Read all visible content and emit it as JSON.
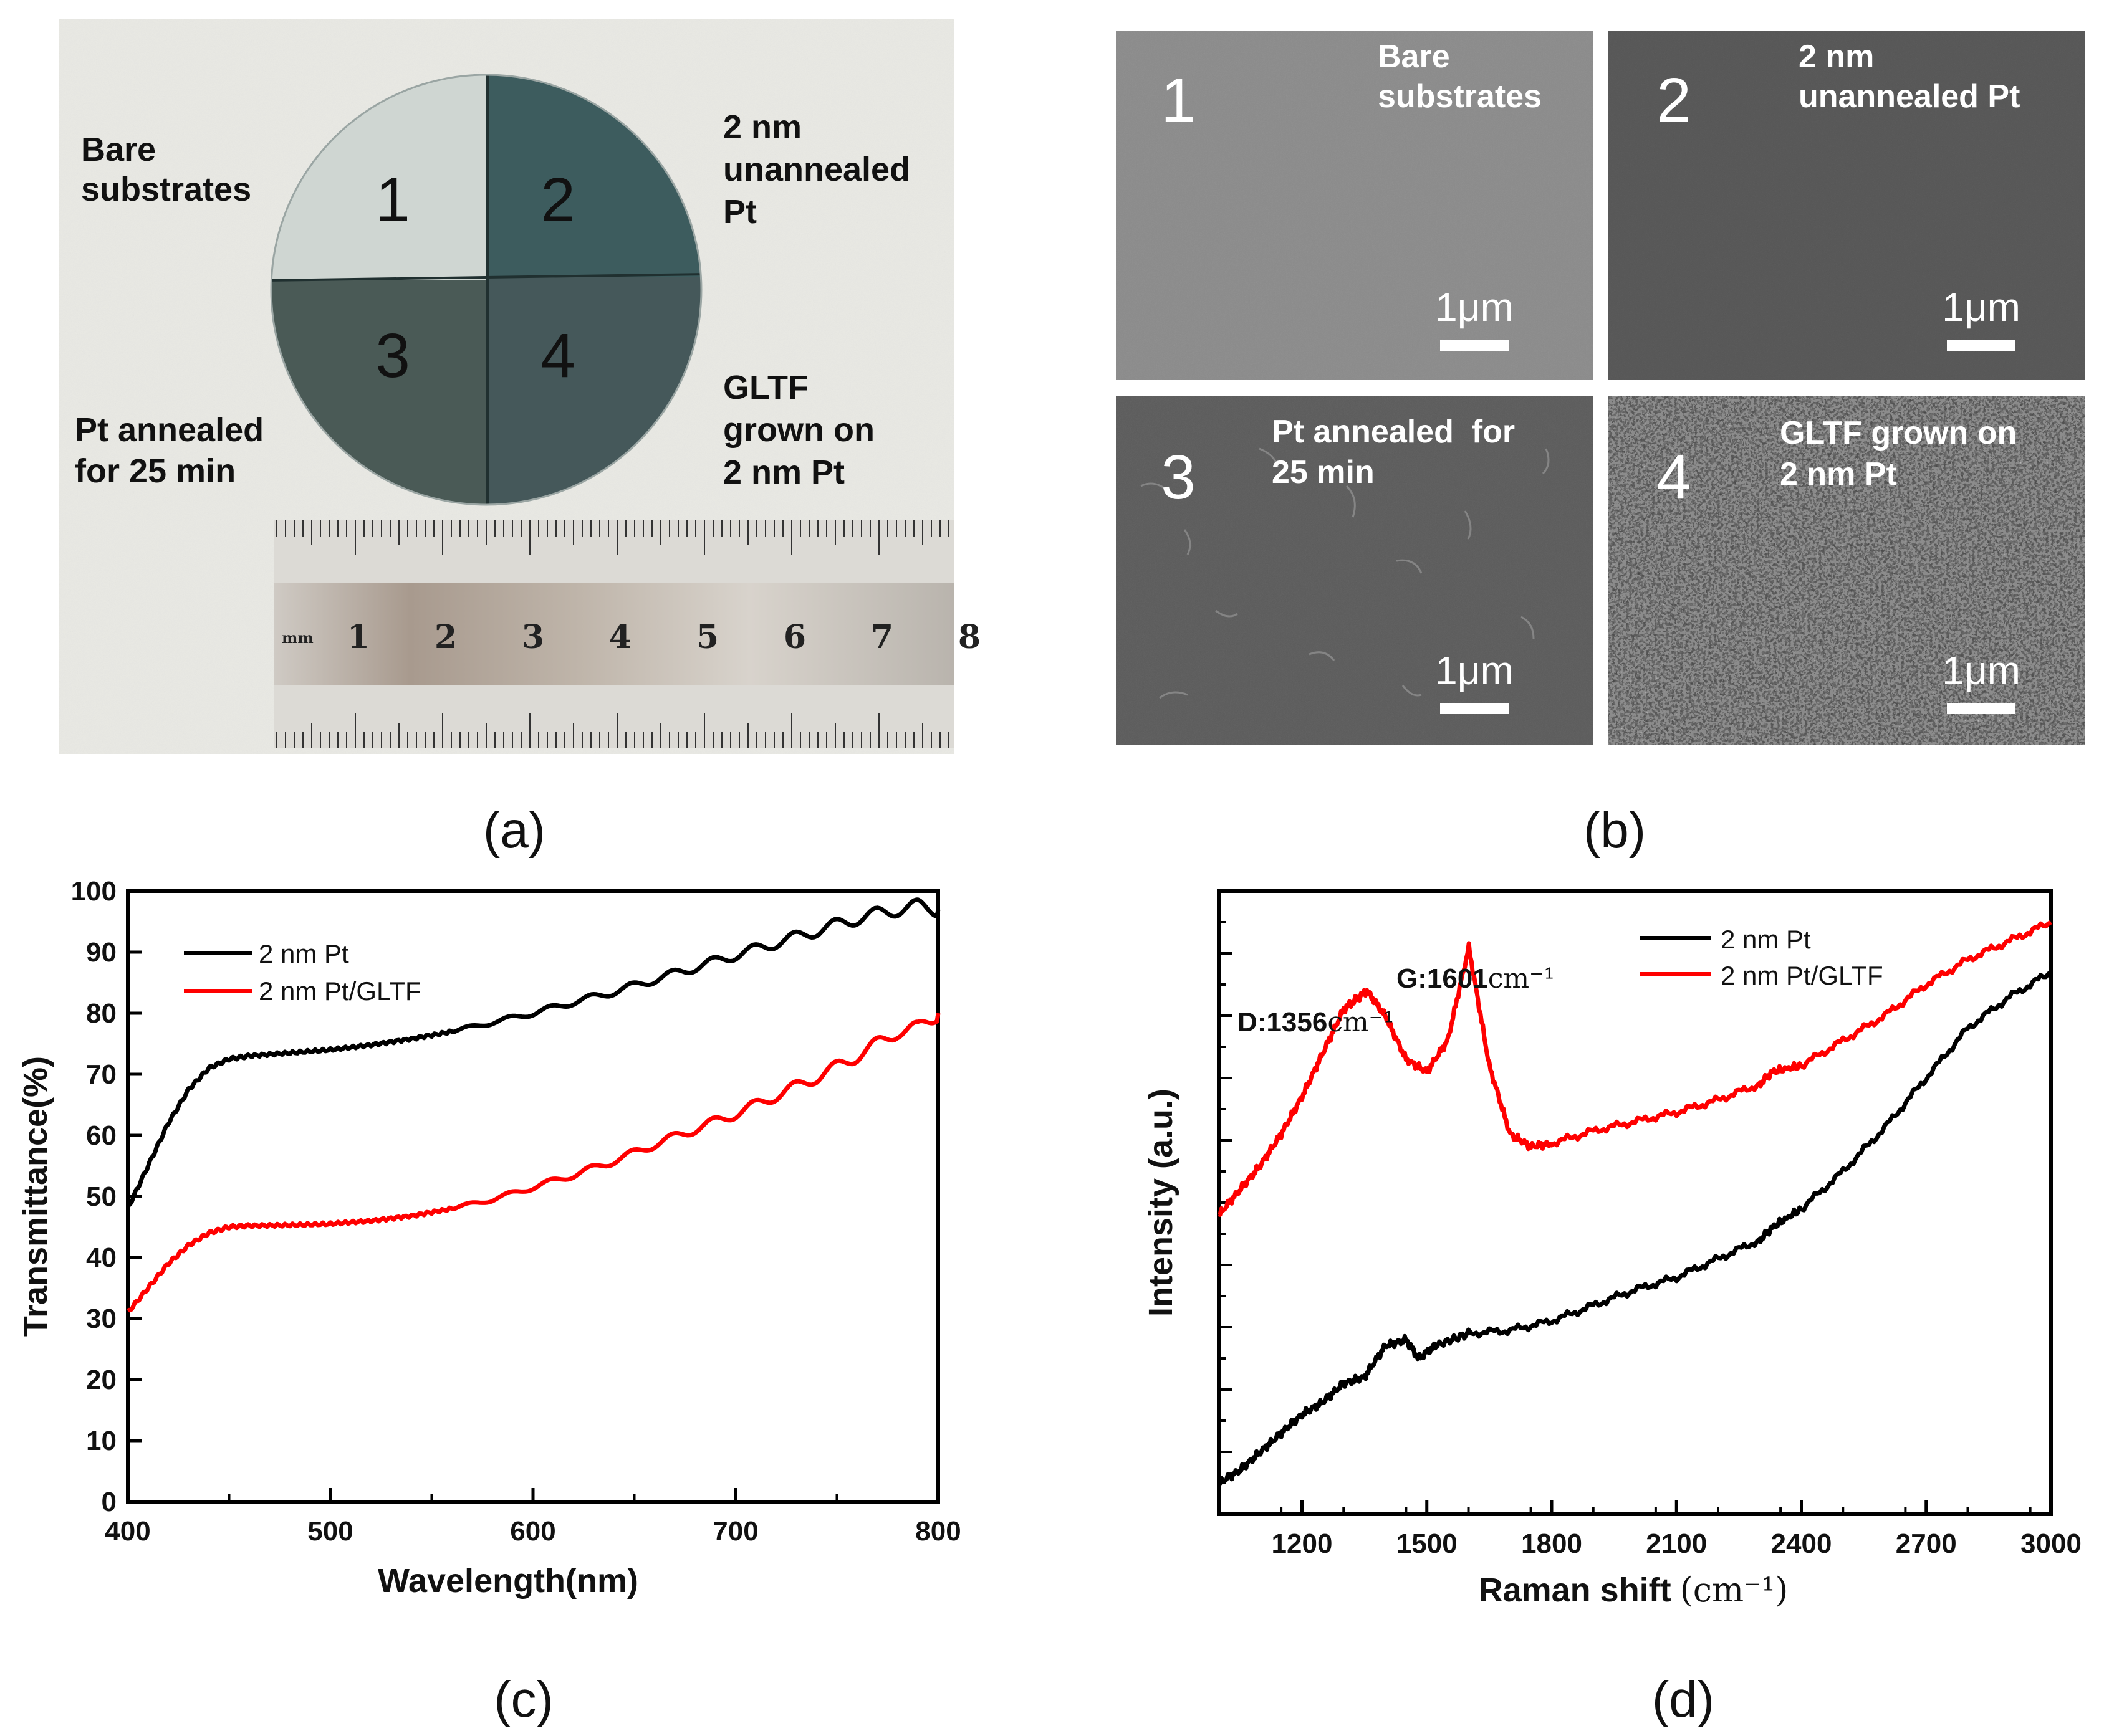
{
  "panel_labels": {
    "a": "(a)",
    "b": "(b)",
    "c": "(c)",
    "d": "(d)"
  },
  "panel_a": {
    "quadrant_numbers": [
      "1",
      "2",
      "3",
      "4"
    ],
    "labels": {
      "bare": [
        "Bare",
        "substrates"
      ],
      "unannealed": [
        "2 nm",
        "unannealed",
        "Pt"
      ],
      "annealed": [
        "Pt annealed",
        "for 25 min"
      ],
      "gltf": [
        "GLTF",
        "grown on",
        "2 nm Pt"
      ]
    },
    "ruler": {
      "unit": "mm",
      "numbers": [
        "1",
        "2",
        "3",
        "4",
        "5",
        "6",
        "7",
        "8"
      ]
    }
  },
  "panel_b": {
    "tiles": [
      {
        "number": "1",
        "caption": [
          "Bare",
          "substrates"
        ],
        "scale": "1μm"
      },
      {
        "number": "2",
        "caption": [
          "2 nm",
          "unannealed Pt"
        ],
        "scale": "1μm"
      },
      {
        "number": "3",
        "caption": [
          "Pt annealed  for",
          "25 min"
        ],
        "scale": "1μm"
      },
      {
        "number": "4",
        "caption": [
          "GLTF grown on",
          "2 nm Pt"
        ],
        "scale": "1μm"
      }
    ]
  },
  "chart_data": [
    {
      "id": "c",
      "type": "line",
      "xlabel": "Wavelength(nm)",
      "ylabel": "Transmittance(%)",
      "xlim": [
        400,
        800
      ],
      "ylim": [
        0,
        100
      ],
      "xticks": [
        400,
        500,
        600,
        700,
        800
      ],
      "yticks": [
        0,
        10,
        20,
        30,
        40,
        50,
        60,
        70,
        80,
        90,
        100
      ],
      "legend_position": "top-left",
      "series": [
        {
          "name": "2 nm Pt",
          "color": "#000000",
          "x": [
            400,
            410,
            420,
            430,
            440,
            450,
            460,
            480,
            500,
            520,
            540,
            560,
            580,
            600,
            620,
            640,
            660,
            680,
            700,
            720,
            740,
            760,
            780,
            790,
            800
          ],
          "y": [
            48,
            55,
            62,
            67.5,
            71,
            72.5,
            73,
            73.5,
            74,
            74.8,
            75.8,
            77,
            78.5,
            80,
            81.8,
            83.5,
            85.5,
            87.5,
            89.5,
            91.5,
            93.5,
            95.5,
            97,
            97.5,
            97
          ]
        },
        {
          "name": "2 nm Pt/GLTF",
          "color": "#ff0000",
          "x": [
            400,
            410,
            420,
            430,
            440,
            450,
            460,
            480,
            500,
            520,
            540,
            560,
            580,
            600,
            620,
            640,
            660,
            680,
            700,
            720,
            740,
            760,
            780,
            790,
            800
          ],
          "y": [
            31,
            35,
            39,
            42,
            44,
            45,
            45.2,
            45.3,
            45.5,
            46,
            46.8,
            48,
            49.5,
            51.5,
            53.5,
            55.8,
            58.5,
            61,
            63.5,
            66.5,
            69.5,
            73,
            77,
            77.5,
            80
          ]
        }
      ]
    },
    {
      "id": "d",
      "type": "line",
      "xlabel": "Raman shift",
      "xlabel_unit": "(cm⁻¹)",
      "ylabel": "Intensity (a.u.)",
      "xlim": [
        1000,
        3000
      ],
      "ylim": [
        0,
        100
      ],
      "xticks": [
        1200,
        1500,
        1800,
        2100,
        2400,
        2700,
        3000
      ],
      "legend_position": "top-center",
      "annotations": [
        {
          "text": "D:1356",
          "unit": "cm⁻¹",
          "x": 1356
        },
        {
          "text": "G:1601",
          "unit": "cm⁻¹",
          "x": 1601
        }
      ],
      "series": [
        {
          "name": "2 nm Pt",
          "color": "#000000",
          "x": [
            1000,
            1050,
            1100,
            1150,
            1200,
            1250,
            1300,
            1350,
            1400,
            1450,
            1480,
            1520,
            1600,
            1700,
            1800,
            1900,
            2000,
            2100,
            2200,
            2300,
            2330,
            2400,
            2500,
            2600,
            2700,
            2800,
            2900,
            3000
          ],
          "y": [
            5,
            7,
            10,
            13,
            16,
            18,
            21,
            22,
            27,
            28,
            25,
            27,
            29,
            29.5,
            31,
            33.5,
            36,
            38,
            41,
            44,
            46,
            49,
            55,
            62,
            70,
            78,
            83,
            87
          ]
        },
        {
          "name": "2 nm Pt/GLTF",
          "color": "#ff0000",
          "x": [
            1000,
            1050,
            1100,
            1150,
            1200,
            1250,
            1300,
            1356,
            1400,
            1450,
            1500,
            1550,
            1601,
            1650,
            1700,
            1750,
            1800,
            1900,
            2000,
            2100,
            2200,
            2300,
            2330,
            2400,
            2500,
            2600,
            2700,
            2800,
            2900,
            3000
          ],
          "y": [
            48,
            52,
            56,
            61,
            67,
            74,
            81,
            84,
            80,
            73,
            71,
            76,
            91,
            72,
            61,
            59,
            59.5,
            61.5,
            63,
            64.5,
            66.5,
            69,
            71,
            72,
            76,
            80,
            85,
            89,
            92,
            95
          ]
        }
      ]
    }
  ],
  "colors": {
    "black_series": "#000000",
    "red_series": "#ff0000",
    "photo_background": "#e9e9e4",
    "sem_tile_1": "#8a8a8a",
    "sem_tile_2": "#555555",
    "sem_tile_3": "#5a5a5a",
    "sem_tile_4": "#888888"
  }
}
